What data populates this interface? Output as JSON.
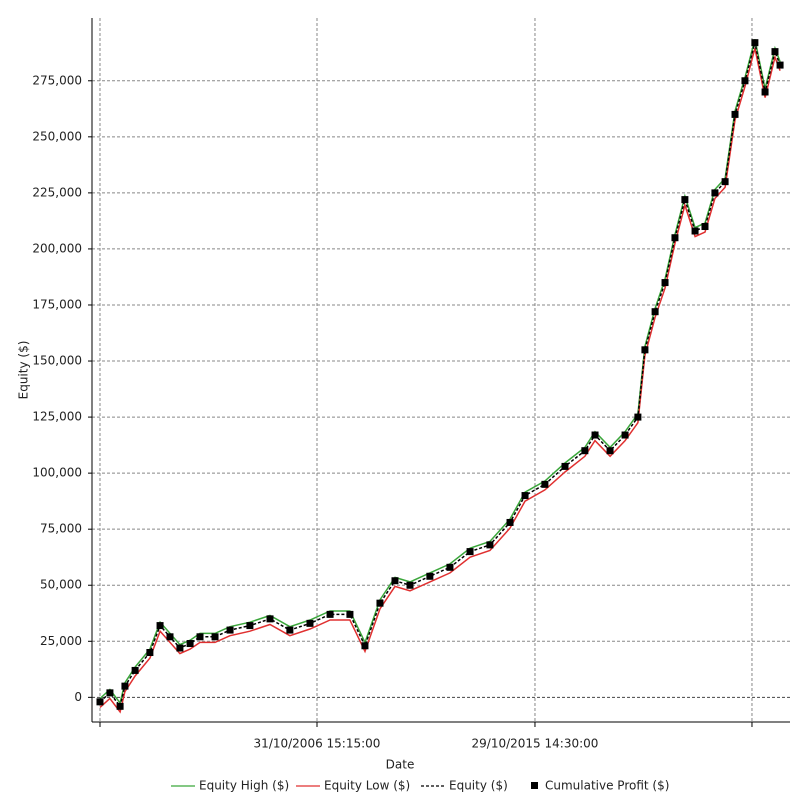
{
  "chart_data": {
    "type": "line",
    "xlabel": "Date",
    "ylabel": "Equity ($)",
    "x": [
      1997.87,
      1998.28,
      1998.7,
      1998.9,
      1999.32,
      1999.93,
      2000.35,
      2000.76,
      2001.17,
      2001.59,
      2002.0,
      2002.62,
      2003.24,
      2004.06,
      2004.89,
      2005.71,
      2006.54,
      2007.37,
      2008.19,
      2008.81,
      2009.43,
      2010.05,
      2010.67,
      2011.49,
      2012.32,
      2013.15,
      2013.97,
      2014.8,
      2015.42,
      2016.24,
      2017.07,
      2017.89,
      2018.31,
      2018.93,
      2019.55,
      2020.08,
      2020.37,
      2020.79,
      2021.2,
      2021.61,
      2022.02,
      2022.44,
      2022.85,
      2023.26,
      2023.68,
      2024.09,
      2024.5,
      2024.91,
      2025.33,
      2025.74,
      2025.95
    ],
    "series": [
      {
        "name": "Equity High ($)",
        "color": "#3aa63a",
        "style": "line",
        "values": [
          -500,
          3500,
          -2500,
          6500,
          13500,
          21500,
          33500,
          28500,
          23500,
          25500,
          28500,
          28500,
          31500,
          33500,
          36500,
          31500,
          34500,
          38500,
          38500,
          24500,
          43500,
          53500,
          51500,
          55500,
          59500,
          66500,
          69500,
          79500,
          91500,
          96500,
          104500,
          111500,
          118500,
          111500,
          118500,
          126500,
          156500,
          173500,
          186500,
          206500,
          223500,
          209500,
          211500,
          226500,
          231500,
          261500,
          276500,
          293500,
          271500,
          289500,
          283500
        ]
      },
      {
        "name": "Equity Low ($)",
        "color": "#e03030",
        "style": "line",
        "values": [
          -4500,
          -500,
          -6500,
          2500,
          9500,
          17500,
          29500,
          24500,
          19500,
          21500,
          24500,
          24500,
          27500,
          29500,
          32500,
          27500,
          30500,
          34500,
          34500,
          20500,
          39500,
          49500,
          47500,
          51500,
          55500,
          62500,
          65500,
          75500,
          87500,
          92500,
          100500,
          107500,
          114500,
          107500,
          114500,
          122500,
          152500,
          169500,
          182500,
          202500,
          219500,
          205500,
          207500,
          222500,
          227500,
          257500,
          272500,
          289500,
          267500,
          285500,
          279500
        ]
      },
      {
        "name": "Equity ($)",
        "color": "#000000",
        "style": "dashed",
        "values": [
          -2000,
          2000,
          -4000,
          5000,
          12000,
          20000,
          32000,
          27000,
          22000,
          24000,
          27000,
          27000,
          30000,
          32000,
          35000,
          30000,
          33000,
          37000,
          37000,
          23000,
          42000,
          52000,
          50000,
          54000,
          58000,
          65000,
          68000,
          78000,
          90000,
          95000,
          103000,
          110000,
          117000,
          110000,
          117000,
          125000,
          155000,
          172000,
          185000,
          205000,
          222000,
          208000,
          210000,
          225000,
          230000,
          260000,
          275000,
          292000,
          270000,
          288000,
          282000
        ]
      },
      {
        "name": "Cumulative Profit ($)",
        "color": "#000000",
        "style": "square",
        "values": [
          -2000,
          2000,
          -4000,
          5000,
          12000,
          20000,
          32000,
          27000,
          22000,
          24000,
          27000,
          27000,
          30000,
          32000,
          35000,
          30000,
          33000,
          37000,
          37000,
          23000,
          42000,
          52000,
          50000,
          54000,
          58000,
          65000,
          68000,
          78000,
          90000,
          95000,
          103000,
          110000,
          117000,
          110000,
          117000,
          125000,
          155000,
          172000,
          185000,
          205000,
          222000,
          208000,
          210000,
          225000,
          230000,
          260000,
          275000,
          292000,
          270000,
          288000,
          282000
        ]
      }
    ],
    "xlim": [
      1997.54,
      2026.36
    ],
    "xticks": [
      {
        "value": 1997.87,
        "label": null
      },
      {
        "value": 2006.83,
        "label": "31/10/2006 15:15:00"
      },
      {
        "value": 2015.83,
        "label": "29/10/2015 14:30:00"
      },
      {
        "value": 2024.79,
        "label": null
      }
    ],
    "ylim": [
      -11000,
      303000
    ],
    "yticks": [
      0,
      {
        "value": 25000,
        "label": "25,000"
      },
      {
        "value": 50000,
        "label": "50,000"
      },
      {
        "value": 75000,
        "label": "75,000"
      },
      {
        "value": 100000,
        "label": "100,000"
      },
      {
        "value": 125000,
        "label": "125,000"
      },
      {
        "value": 150000,
        "label": "150,000"
      },
      {
        "value": 175000,
        "label": "175,000"
      },
      {
        "value": 200000,
        "label": "200,000"
      },
      {
        "value": 225000,
        "label": "225,000"
      },
      {
        "value": 250000,
        "label": "250,000"
      },
      {
        "value": 275000,
        "label": "275,000"
      }
    ],
    "grid": true,
    "legend": "bottom"
  }
}
